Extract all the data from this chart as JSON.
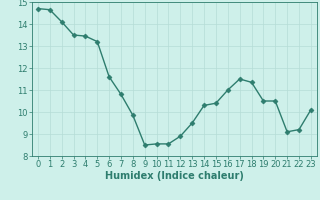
{
  "x": [
    0,
    1,
    2,
    3,
    4,
    5,
    6,
    7,
    8,
    9,
    10,
    11,
    12,
    13,
    14,
    15,
    16,
    17,
    18,
    19,
    20,
    21,
    22,
    23
  ],
  "y": [
    14.7,
    14.65,
    14.1,
    13.5,
    13.45,
    13.2,
    11.6,
    10.8,
    9.85,
    8.5,
    8.55,
    8.55,
    8.9,
    9.5,
    10.3,
    10.4,
    11.0,
    11.5,
    11.35,
    10.5,
    10.5,
    9.1,
    9.2,
    10.1
  ],
  "line_color": "#2e7d6e",
  "marker": "D",
  "markersize": 2.5,
  "linewidth": 1.0,
  "bg_color": "#cef0ea",
  "grid_color": "#b5ddd6",
  "xlabel": "Humidex (Indice chaleur)",
  "xlim": [
    -0.5,
    23.5
  ],
  "ylim": [
    8,
    15
  ],
  "yticks": [
    8,
    9,
    10,
    11,
    12,
    13,
    14,
    15
  ],
  "xticks": [
    0,
    1,
    2,
    3,
    4,
    5,
    6,
    7,
    8,
    9,
    10,
    11,
    12,
    13,
    14,
    15,
    16,
    17,
    18,
    19,
    20,
    21,
    22,
    23
  ],
  "xlabel_fontsize": 7,
  "tick_fontsize": 6,
  "figsize": [
    3.2,
    2.0
  ],
  "dpi": 100
}
